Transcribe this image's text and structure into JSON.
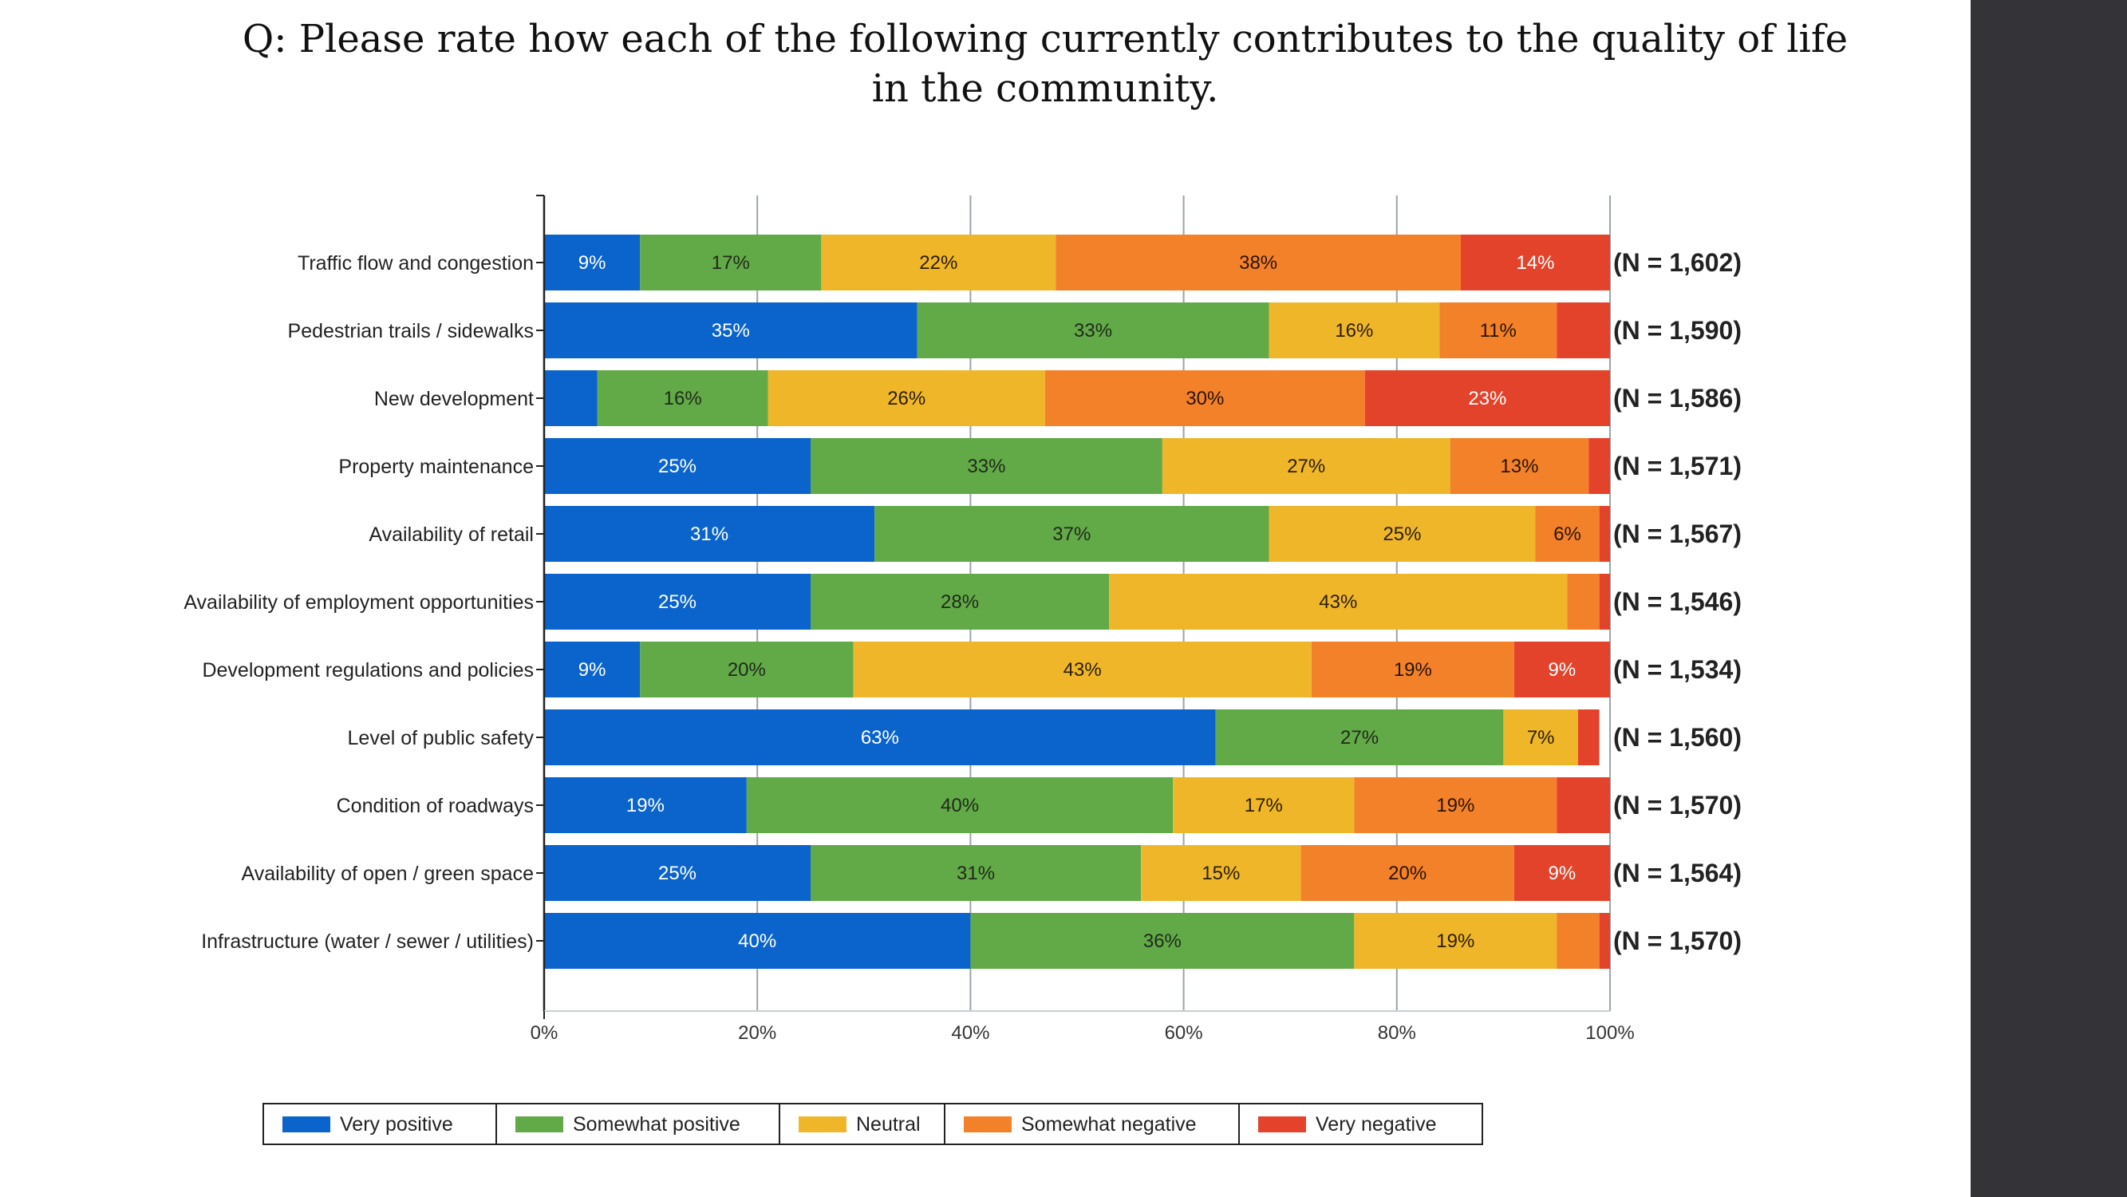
{
  "title": "Q: Please rate how each of the following currently contributes to the quality of life in the community.",
  "colors": {
    "very_positive": "#0b64cc",
    "somewhat_positive": "#62a947",
    "neutral": "#f0b62a",
    "somewhat_negative": "#f3812a",
    "very_negative": "#e4432b"
  },
  "chart_data": {
    "type": "bar",
    "orientation": "horizontal",
    "stacked": true,
    "title": "Q: Please rate how each of the following currently contributes to the quality of life in the community.",
    "xlabel": "",
    "ylabel": "",
    "xlim": [
      0,
      100
    ],
    "x_ticks": [
      "0%",
      "20%",
      "40%",
      "60%",
      "80%",
      "100%"
    ],
    "grid": "vertical",
    "legend_position": "bottom",
    "categories": [
      "Traffic flow and congestion",
      "Pedestrian trails / sidewalks",
      "New development",
      "Property maintenance",
      "Availability of retail",
      "Availability of employment opportunities",
      "Development regulations and policies",
      "Level of public safety",
      "Condition of roadways",
      "Availability of open / green space",
      "Infrastructure (water / sewer / utilities)"
    ],
    "n_labels": [
      "(N = 1,602)",
      "(N = 1,590)",
      "(N = 1,586)",
      "(N = 1,571)",
      "(N = 1,567)",
      "(N = 1,546)",
      "(N = 1,534)",
      "(N = 1,560)",
      "(N = 1,570)",
      "(N = 1,564)",
      "(N = 1,570)"
    ],
    "series": [
      {
        "name": "Very positive",
        "values": [
          9,
          35,
          5,
          25,
          31,
          25,
          9,
          63,
          19,
          25,
          40
        ],
        "labels": [
          "9%",
          "35%",
          "",
          "25%",
          "31%",
          "25%",
          "9%",
          "63%",
          "19%",
          "25%",
          "40%"
        ]
      },
      {
        "name": "Somewhat positive",
        "values": [
          17,
          33,
          16,
          33,
          37,
          28,
          20,
          27,
          40,
          31,
          36
        ],
        "labels": [
          "17%",
          "33%",
          "16%",
          "33%",
          "37%",
          "28%",
          "20%",
          "27%",
          "40%",
          "31%",
          "36%"
        ]
      },
      {
        "name": "Neutral",
        "values": [
          22,
          16,
          26,
          27,
          25,
          43,
          43,
          7,
          17,
          15,
          19
        ],
        "labels": [
          "22%",
          "16%",
          "26%",
          "27%",
          "25%",
          "43%",
          "43%",
          "7%",
          "17%",
          "15%",
          "19%"
        ]
      },
      {
        "name": "Somewhat negative",
        "values": [
          38,
          11,
          30,
          13,
          6,
          3,
          19,
          0,
          19,
          20,
          4
        ],
        "labels": [
          "38%",
          "11%",
          "30%",
          "13%",
          "6%",
          "",
          "19%",
          "",
          "19%",
          "20%",
          ""
        ]
      },
      {
        "name": "Very negative",
        "values": [
          14,
          5,
          23,
          2,
          1,
          1,
          9,
          2,
          5,
          9,
          1
        ],
        "labels": [
          "14%",
          "",
          "23%",
          "",
          "",
          "",
          "9%",
          "",
          "",
          "9%",
          ""
        ]
      }
    ]
  }
}
